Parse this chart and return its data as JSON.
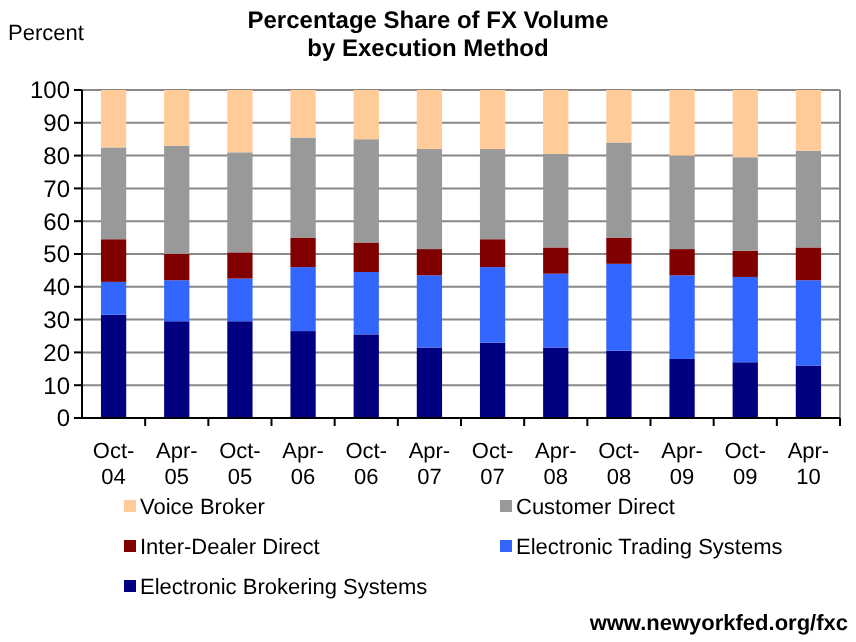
{
  "chart_data": {
    "type": "bar",
    "stacked": true,
    "title": "Percentage Share of FX Volume\nby Execution Method",
    "ylabel": "Percent",
    "categories": [
      "Oct-04",
      "Apr-05",
      "Oct-05",
      "Apr-06",
      "Oct-06",
      "Apr-07",
      "Oct-07",
      "Apr-08",
      "Oct-08",
      "Apr-09",
      "Oct-09",
      "Apr-10"
    ],
    "series": [
      {
        "name": "Electronic Brokering Systems",
        "color": "#000080",
        "values": [
          31.5,
          29.5,
          29.5,
          26.5,
          25.5,
          21.5,
          23,
          21.5,
          20.5,
          18,
          17,
          16
        ]
      },
      {
        "name": "Electronic Trading Systems",
        "color": "#3366ff",
        "values": [
          10,
          12.5,
          13,
          19.5,
          19,
          22,
          23,
          22.5,
          26.5,
          25.5,
          26,
          26
        ]
      },
      {
        "name": "Inter-Dealer Direct",
        "color": "#800000",
        "values": [
          13,
          8,
          8,
          9,
          9,
          8,
          8.5,
          8,
          8,
          8,
          8,
          10
        ]
      },
      {
        "name": "Customer Direct",
        "color": "#999999",
        "values": [
          28,
          33,
          30.5,
          30.5,
          31.5,
          30.5,
          27.5,
          28.5,
          29,
          28.5,
          28.5,
          29.5
        ]
      },
      {
        "name": "Voice Broker",
        "color": "#ffcc99",
        "values": [
          17.5,
          17,
          19,
          14.5,
          15,
          18,
          18,
          19.5,
          16,
          20,
          20.5,
          18.5
        ]
      }
    ],
    "ylim": [
      0,
      100
    ],
    "yticks": [
      0,
      10,
      20,
      30,
      40,
      50,
      60,
      70,
      80,
      90,
      100
    ],
    "grid": "y",
    "legend": "bottom",
    "annotations": [
      "www.newyorkfed.org/fxc"
    ]
  }
}
